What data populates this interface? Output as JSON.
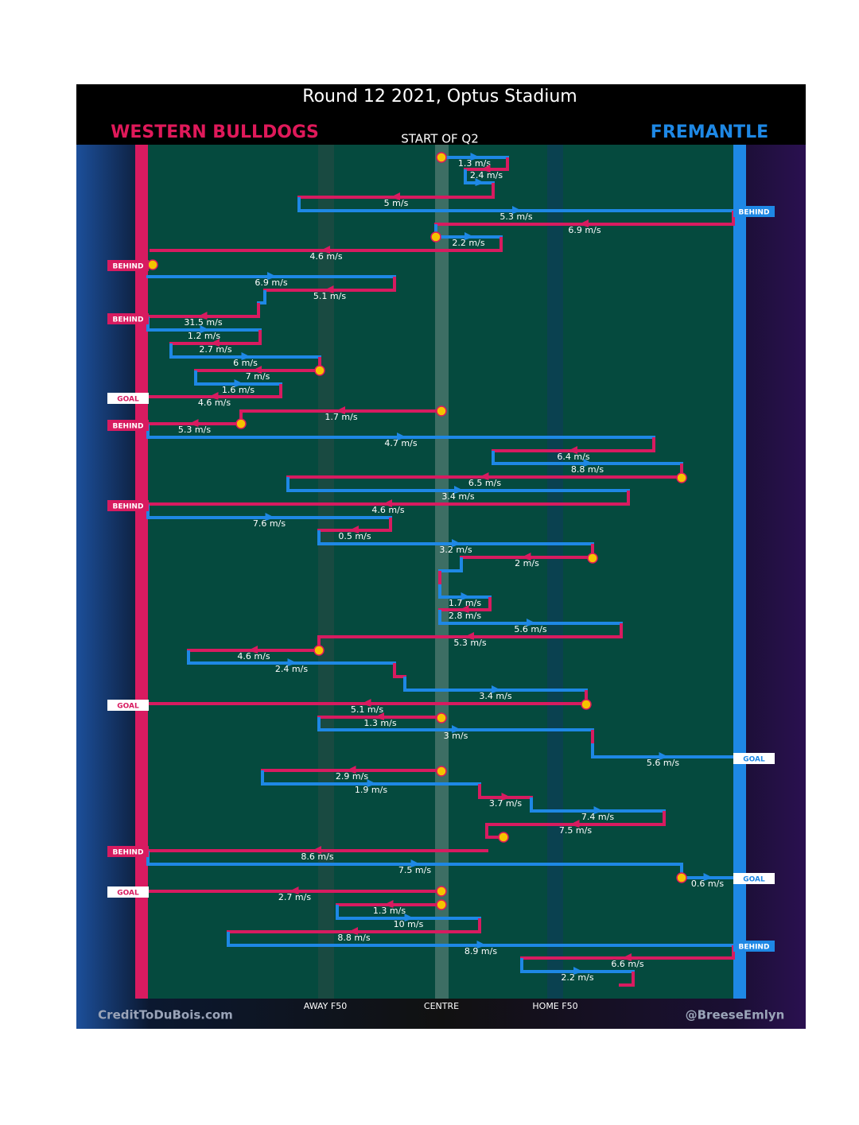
{
  "title": "Round 12 2021, Optus Stadium",
  "teams": {
    "left": "WESTERN BULLDOGS",
    "right": "FREMANTLE"
  },
  "period": "START OF Q2",
  "field_labels": [
    "AWAY F50",
    "CENTRE",
    "HOME F50"
  ],
  "credits": [
    "CreditToDuBois.com",
    "@BreeseEmlyn"
  ],
  "moves": [
    "1.3 m/s",
    "2.4 m/s",
    "5 m/s",
    "5.3 m/s",
    "6.9 m/s",
    "2.2 m/s",
    "4.6 m/s",
    "6.9 m/s",
    "5.1 m/s",
    "31.5 m/s",
    "1.2 m/s",
    "2.7 m/s",
    "6 m/s",
    "7 m/s",
    "1.6 m/s",
    "4.6 m/s",
    "1.7 m/s",
    "5.3 m/s",
    "4.7 m/s",
    "6.4 m/s",
    "8.8 m/s",
    "6.5 m/s",
    "3.4 m/s",
    "4.6 m/s",
    "7.6 m/s",
    "0.5 m/s",
    "3.2 m/s",
    "2 m/s",
    "1.7 m/s",
    "2.8 m/s",
    "5.6 m/s",
    "5.3 m/s",
    "4.6 m/s",
    "2.4 m/s",
    "3.4 m/s",
    "5.1 m/s",
    "1.3 m/s",
    "3 m/s",
    "5.6 m/s",
    "2.9 m/s",
    "1.9 m/s",
    "3.7 m/s",
    "7.4 m/s",
    "7.5 m/s",
    "8.6 m/s",
    "7.5 m/s",
    "0.6 m/s",
    "2.7 m/s",
    "1.3 m/s",
    "10 m/s",
    "8.8 m/s",
    "8.9 m/s",
    "6.6 m/s",
    "2.2 m/s"
  ],
  "events": [
    "BEHIND",
    "BEHIND",
    "BEHIND",
    "GOAL",
    "BEHIND",
    "BEHIND",
    "GOAL",
    "GOAL",
    "BEHIND",
    "GOAL",
    "GOAL",
    "BEHIND"
  ]
}
